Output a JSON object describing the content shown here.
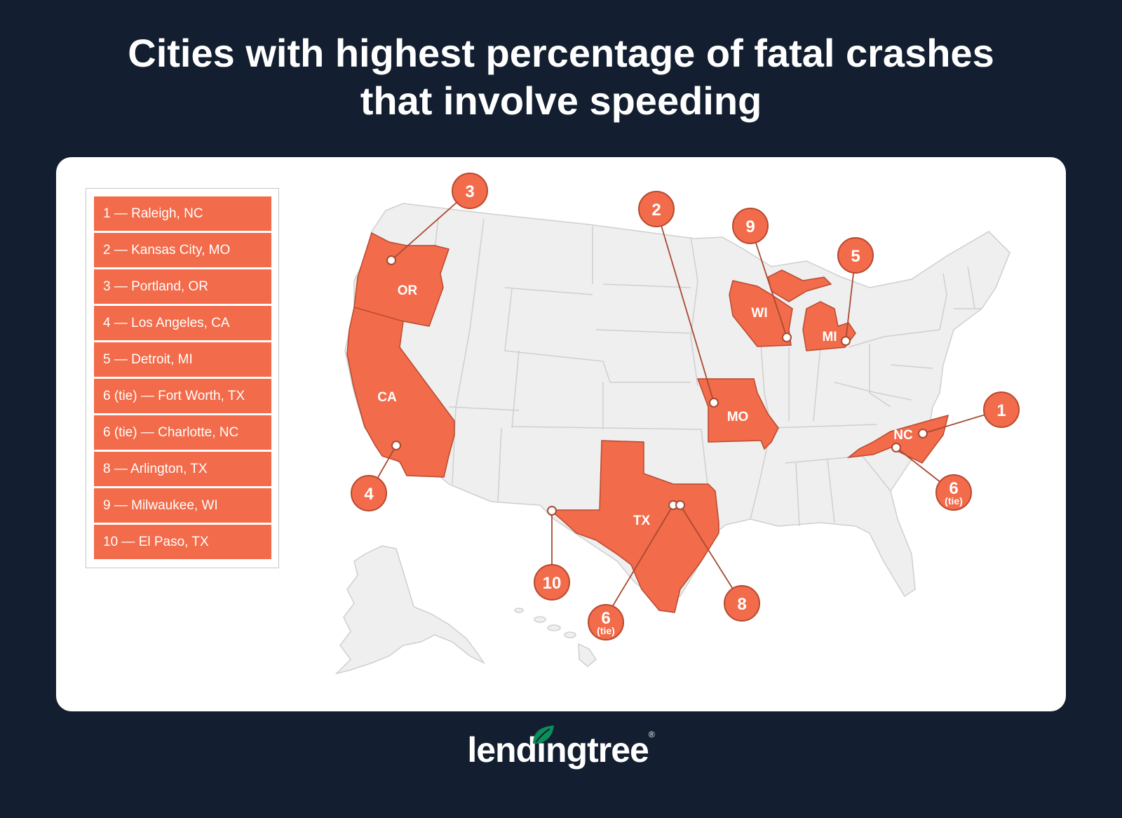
{
  "title": {
    "line1": "Cities with highest percentage of fatal crashes",
    "line2": "that involve speeding"
  },
  "legend": [
    "1 — Raleigh, NC",
    "2 — Kansas City, MO",
    "3 — Portland, OR",
    "4 — Los Angeles, CA",
    "5 — Detroit, MI",
    "6 (tie) — Fort Worth, TX",
    "6 (tie) — Charlotte, NC",
    "8 — Arlington, TX",
    "9 — Milwaukee, WI",
    "10 — El Paso, TX"
  ],
  "state_labels": {
    "or": "OR",
    "ca": "CA",
    "mo": "MO",
    "wi": "WI",
    "mi": "MI",
    "tx": "TX",
    "nc": "NC"
  },
  "markers": [
    {
      "rank": "1",
      "note": ""
    },
    {
      "rank": "2",
      "note": ""
    },
    {
      "rank": "3",
      "note": ""
    },
    {
      "rank": "4",
      "note": ""
    },
    {
      "rank": "5",
      "note": ""
    },
    {
      "rank": "6",
      "note": "(tie)"
    },
    {
      "rank": "6",
      "note": "(tie)"
    },
    {
      "rank": "8",
      "note": ""
    },
    {
      "rank": "9",
      "note": ""
    },
    {
      "rank": "10",
      "note": ""
    }
  ],
  "colors": {
    "background": "#131f30",
    "highlight": "#f26b4a",
    "land": "#efefef",
    "brand_green": "#0b8f5a"
  },
  "logo": {
    "text": "lendingtree",
    "icon": "leaf-icon"
  }
}
